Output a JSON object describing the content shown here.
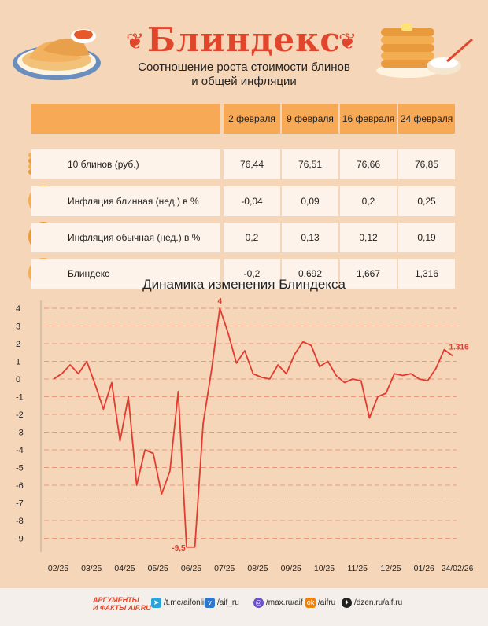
{
  "header": {
    "title": "Блиндекс",
    "subtitle_line1": "Соотношение роста стоимости блинов",
    "subtitle_line2": "и общей инфляции"
  },
  "table": {
    "columns": [
      "2 февраля",
      "9 февраля",
      "16 февраля",
      "24 февраля"
    ],
    "rows": [
      {
        "label": "10 блинов (руб.)",
        "icon": "pancake-stack-icon",
        "values": [
          "76,44",
          "76,51",
          "76,66",
          "76,85"
        ]
      },
      {
        "label": "Инфляция блинная (нед.) в %",
        "icon": "pancake-coin-icon",
        "values": [
          "-0,04",
          "0,09",
          "0,2",
          "0,25"
        ]
      },
      {
        "label": "Инфляция обычная (нед.) в %",
        "icon": "ruble-coin-icon",
        "values": [
          "0,2",
          "0,13",
          "0,12",
          "0,19"
        ]
      },
      {
        "label": "Блиндекс",
        "icon": "pancake-growth-icon",
        "values": [
          "-0,2",
          "0,692",
          "1,667",
          "1,316"
        ]
      }
    ]
  },
  "chart_title": "Динамика изменения Блиндекса",
  "chart_data": {
    "type": "line",
    "title": "Динамика изменения Блиндекса",
    "xlabel": "",
    "ylabel": "",
    "ylim": [
      -10,
      4.5
    ],
    "y_ticks": [
      "4",
      "3",
      "2",
      "1",
      "0",
      "-1",
      "-2",
      "-3",
      "-4",
      "-5",
      "-6",
      "-7",
      "-8",
      "-9"
    ],
    "x_ticks": [
      "02/25",
      "03/25",
      "04/25",
      "05/25",
      "06/25",
      "07/25",
      "08/25",
      "09/25",
      "10/25",
      "11/25",
      "12/25",
      "01/26",
      "24/02/26"
    ],
    "grid": true,
    "series": [
      {
        "color": "#e23b30",
        "x": [
          0,
          0.25,
          0.5,
          0.75,
          1,
          1.25,
          1.5,
          1.75,
          2,
          2.25,
          2.5,
          2.75,
          3,
          3.25,
          3.5,
          3.75,
          4,
          4.25,
          4.5,
          4.75,
          5,
          5.25,
          5.5,
          5.75,
          6,
          6.25,
          6.5,
          6.75,
          7,
          7.25,
          7.5,
          7.75,
          8,
          8.25,
          8.5,
          8.75,
          9,
          9.25,
          9.5,
          9.75,
          10,
          10.25,
          10.5,
          10.75,
          11,
          11.25,
          11.5,
          11.75,
          12
        ],
        "values": [
          0.0,
          0.3,
          0.8,
          0.3,
          1.0,
          -0.3,
          -1.7,
          -0.2,
          -3.5,
          -1.0,
          -6.0,
          -4.0,
          -4.2,
          -6.5,
          -5.2,
          -0.7,
          -9.5,
          -9.5,
          -2.5,
          0.5,
          4.0,
          2.6,
          0.9,
          1.6,
          0.3,
          0.1,
          0.0,
          0.8,
          0.3,
          1.4,
          2.1,
          1.9,
          0.7,
          1.0,
          0.2,
          -0.2,
          0.0,
          -0.1,
          -2.2,
          -1.0,
          -0.8,
          0.3,
          0.2,
          0.3,
          0.0,
          -0.1,
          0.6,
          1.66,
          1.316
        ]
      }
    ],
    "annotations": [
      {
        "text": "4",
        "x": 5,
        "y": 4.0
      },
      {
        "text": "-9,5",
        "x": 4,
        "y": -9.5
      },
      {
        "text": "1.316",
        "x": 12,
        "y": 1.316
      }
    ]
  },
  "footer": {
    "logo_line1": "АРГУМЕНТЫ",
    "logo_line2": "И ФАКТЫ AIF.RU",
    "links": [
      "/t.me/aifonline",
      "/aif_ru",
      "/max.ru/aif",
      "/aifru",
      "/dzen.ru/aif.ru"
    ]
  },
  "colors": {
    "accent": "#e0462c",
    "line": "#e23b30",
    "background": "#f6d6b8",
    "header_cell": "#f7a955"
  }
}
